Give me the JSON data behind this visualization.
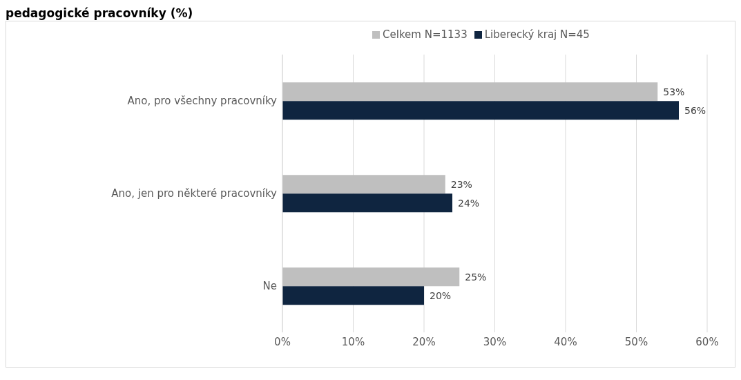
{
  "chart_data": {
    "type": "bar",
    "orientation": "horizontal",
    "title": "pedagogické pracovníky (%)",
    "categories": [
      "Ano, pro všechny pracovníky",
      "Ano, jen pro některé pracovníky",
      "Ne"
    ],
    "series": [
      {
        "name": "Celkem N=1133",
        "color": "#bfbfbf",
        "values": [
          53,
          23,
          25
        ],
        "value_labels": [
          "53%",
          "23%",
          "25%"
        ]
      },
      {
        "name": "Liberecký kraj N=45",
        "color": "#0f2540",
        "values": [
          56,
          24,
          20
        ],
        "value_labels": [
          "56%",
          "24%",
          "20%"
        ]
      }
    ],
    "xlim": [
      0,
      60
    ],
    "xticks": [
      {
        "value": 0,
        "label": "0%"
      },
      {
        "value": 10,
        "label": "10%"
      },
      {
        "value": 20,
        "label": "20%"
      },
      {
        "value": 30,
        "label": "30%"
      },
      {
        "value": 40,
        "label": "40%"
      },
      {
        "value": 50,
        "label": "50%"
      },
      {
        "value": 60,
        "label": "60%"
      }
    ],
    "grid": "x",
    "legend": "top"
  }
}
